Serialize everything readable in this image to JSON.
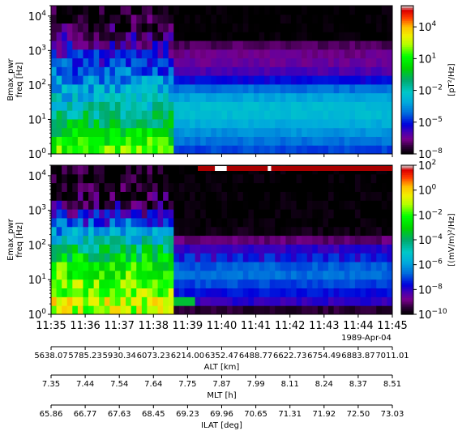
{
  "chart_data": [
    {
      "type": "heatmap",
      "name": "magnetic-spectrogram",
      "ylabel": "Bmax_pwr\nfreq [Hz]",
      "yscale": "log",
      "ylim": [
        1,
        20000
      ],
      "y_ticks": [
        {
          "value": 1,
          "base": "10",
          "exp": "0"
        },
        {
          "value": 10,
          "base": "10",
          "exp": "1"
        },
        {
          "value": 100,
          "base": "10",
          "exp": "2"
        },
        {
          "value": 1000,
          "base": "10",
          "exp": "3"
        },
        {
          "value": 10000,
          "base": "10",
          "exp": "4"
        }
      ],
      "colorbar": {
        "label": "[pT²/Hz]",
        "scale": "log",
        "range_exp": [
          -8,
          6
        ],
        "ticks": [
          {
            "base": "10",
            "exp": "4",
            "value_exp": 4
          },
          {
            "base": "10",
            "exp": "1",
            "value_exp": 1
          },
          {
            "base": "10",
            "exp": "−2",
            "value_exp": -2
          },
          {
            "base": "10",
            "exp": "−5",
            "value_exp": -5
          },
          {
            "base": "10",
            "exp": "−8",
            "value_exp": -8
          }
        ]
      },
      "dense_window": {
        "start_minute": 35.0,
        "end_minute": 38.45
      },
      "note_levels": "log10 power per frequency bin, low to high frequency, before and after 11:38:27",
      "levels_dense": [
        1.5,
        1.0,
        0.2,
        -0.5,
        -1.2,
        -2.0,
        -2.6,
        -3.1,
        -3.6,
        -4.2,
        -4.8,
        -5.4,
        -6.0,
        -6.6,
        -7.2,
        -7.7,
        -8.0
      ],
      "levels_sparse": [
        -4.5,
        -4.0,
        -3.5,
        -3.0,
        -2.6,
        -2.6,
        -3.2,
        -4.0,
        -5.2,
        -6.0,
        -6.4,
        -6.6,
        -7.0,
        -8.0,
        -8.0,
        -8.0,
        -8.0
      ]
    },
    {
      "type": "heatmap",
      "name": "electric-spectrogram",
      "ylabel": "Emax_pwr\nfreq [Hz]",
      "yscale": "log",
      "ylim": [
        1,
        20000
      ],
      "y_ticks": [
        {
          "value": 1,
          "base": "10",
          "exp": "0"
        },
        {
          "value": 10,
          "base": "10",
          "exp": "1"
        },
        {
          "value": 100,
          "base": "10",
          "exp": "2"
        },
        {
          "value": 1000,
          "base": "10",
          "exp": "3"
        },
        {
          "value": 10000,
          "base": "10",
          "exp": "4"
        }
      ],
      "colorbar": {
        "label": "[(mV/m)²/Hz]",
        "scale": "log",
        "range_exp": [
          -10,
          2
        ],
        "ticks": [
          {
            "base": "10",
            "exp": "2",
            "value_exp": 2
          },
          {
            "base": "10",
            "exp": "0",
            "value_exp": 0
          },
          {
            "base": "10",
            "exp": "−2",
            "value_exp": -2
          },
          {
            "base": "10",
            "exp": "−4",
            "value_exp": -4
          },
          {
            "base": "10",
            "exp": "−6",
            "value_exp": -6
          },
          {
            "base": "10",
            "exp": "−8",
            "value_exp": -8
          },
          {
            "base": "10",
            "exp": "−10",
            "value_exp": -10
          }
        ]
      },
      "mode_bar": [
        {
          "start_minute": 39.3,
          "end_minute": 39.8,
          "color": "#aa0000"
        },
        {
          "start_minute": 39.8,
          "end_minute": 40.15,
          "color": "#ffffff"
        },
        {
          "start_minute": 40.15,
          "end_minute": 41.35,
          "color": "#aa0000"
        },
        {
          "start_minute": 41.35,
          "end_minute": 41.45,
          "color": "#ffffff"
        },
        {
          "start_minute": 41.45,
          "end_minute": 45.0,
          "color": "#aa0000"
        }
      ],
      "levels_dense": [
        -1.0,
        -0.8,
        -1.3,
        -1.6,
        -2.0,
        -2.3,
        -3.0,
        -4.0,
        -5.0,
        -6.0,
        -7.0,
        -8.0,
        -9.0,
        -9.6,
        -9.8,
        -10.0,
        -10.0
      ],
      "levels_sparse": [
        -9.5,
        -8.0,
        -7.5,
        -7.0,
        -6.6,
        -6.8,
        -7.2,
        -8.0,
        -9.0,
        -9.8,
        -10.0,
        -10.0,
        -10.0,
        -10.0,
        -10.0,
        -10.0,
        -10.0
      ]
    }
  ],
  "time_axis": {
    "tick_labels": [
      "11:35",
      "11:36",
      "11:37",
      "11:38",
      "11:39",
      "11:40",
      "11:41",
      "11:42",
      "11:43",
      "11:44",
      "11:45"
    ],
    "date_label": "1989-Apr-04",
    "range_minutes": [
      35,
      45
    ]
  },
  "aux_axes": [
    {
      "name": "alt",
      "label": "ALT [km]",
      "ticks": [
        "5638.07",
        "5785.23",
        "5930.34",
        "6073.23",
        "6214.00",
        "6352.47",
        "6488.77",
        "6622.73",
        "6754.49",
        "6883.87",
        "7011.01"
      ]
    },
    {
      "name": "mlt",
      "label": "MLT [h]",
      "ticks": [
        "7.35",
        "7.44",
        "7.54",
        "7.64",
        "7.75",
        "7.87",
        "7.99",
        "8.11",
        "8.24",
        "8.37",
        "8.51"
      ]
    },
    {
      "name": "ilat",
      "label": "ILAT [deg]",
      "ticks": [
        "65.86",
        "66.77",
        "67.63",
        "68.45",
        "69.23",
        "69.96",
        "70.65",
        "71.31",
        "71.92",
        "72.50",
        "73.03"
      ]
    }
  ]
}
